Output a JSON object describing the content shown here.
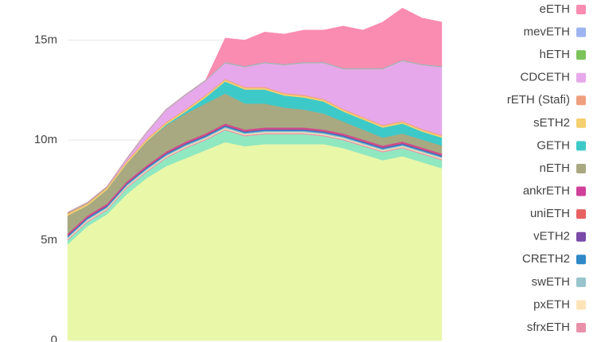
{
  "chart_data": {
    "type": "stacked-area",
    "categories": [
      null,
      null,
      null,
      null,
      null,
      null,
      null,
      null,
      null,
      null,
      null,
      null,
      null,
      null,
      null,
      null,
      null,
      null,
      null,
      null
    ],
    "ylim": [
      0,
      17000000
    ],
    "yticks": [
      0,
      {
        "value": 5000000,
        "label": "5m"
      },
      {
        "value": 10000000,
        "label": "10m"
      },
      {
        "value": 15000000,
        "label": "15m"
      }
    ],
    "grid": true,
    "series": [
      {
        "name": "eETH",
        "color": "#f98cb0",
        "values": [
          0,
          0,
          0,
          0,
          0,
          0,
          0,
          0,
          1200000,
          1300000,
          1500000,
          1500000,
          1600000,
          1600000,
          2100000,
          1900000,
          2300000,
          2600000,
          2300000,
          2200000
        ]
      },
      {
        "name": "mevETH",
        "color": "#9db4f0",
        "values": [
          20000,
          20000,
          20000,
          20000,
          20000,
          20000,
          20000,
          20000,
          20000,
          20000,
          20000,
          20000,
          20000,
          20000,
          20000,
          20000,
          20000,
          20000,
          20000,
          20000
        ]
      },
      {
        "name": "hETH",
        "color": "#7cc35a",
        "values": [
          20000,
          20000,
          20000,
          20000,
          20000,
          20000,
          20000,
          20000,
          20000,
          20000,
          20000,
          20000,
          20000,
          20000,
          20000,
          20000,
          20000,
          20000,
          20000,
          20000
        ]
      },
      {
        "name": "CDCETH",
        "color": "#e6a8ea",
        "values": [
          0,
          0,
          0,
          100000,
          300000,
          600000,
          700000,
          700000,
          800000,
          1000000,
          1200000,
          1400000,
          1600000,
          1800000,
          2000000,
          2400000,
          2800000,
          3000000,
          3200000,
          3400000
        ]
      },
      {
        "name": "rETH (Stafi)",
        "color": "#f0a080",
        "values": [
          50000,
          50000,
          50000,
          50000,
          50000,
          50000,
          50000,
          50000,
          50000,
          50000,
          50000,
          50000,
          50000,
          50000,
          50000,
          50000,
          50000,
          50000,
          50000,
          50000
        ]
      },
      {
        "name": "sETH2",
        "color": "#f5d070",
        "values": [
          80000,
          80000,
          80000,
          80000,
          80000,
          80000,
          80000,
          80000,
          80000,
          80000,
          80000,
          80000,
          80000,
          80000,
          80000,
          80000,
          80000,
          80000,
          80000,
          80000
        ]
      },
      {
        "name": "GETH",
        "color": "#3ec9c9",
        "values": [
          0,
          0,
          0,
          0,
          0,
          50000,
          100000,
          300000,
          600000,
          700000,
          700000,
          600000,
          600000,
          600000,
          500000,
          500000,
          500000,
          500000,
          400000,
          400000
        ]
      },
      {
        "name": "nETH",
        "color": "#a8a980",
        "values": [
          900000,
          500000,
          700000,
          900000,
          1200000,
          1300000,
          1400000,
          1500000,
          1500000,
          1300000,
          1200000,
          1000000,
          900000,
          800000,
          600000,
          500000,
          400000,
          400000,
          400000,
          400000
        ]
      },
      {
        "name": "ankrETH",
        "color": "#d0409a",
        "values": [
          50000,
          50000,
          50000,
          50000,
          50000,
          50000,
          50000,
          50000,
          50000,
          50000,
          50000,
          50000,
          50000,
          50000,
          50000,
          50000,
          50000,
          50000,
          50000,
          50000
        ]
      },
      {
        "name": "uniETH",
        "color": "#e86060",
        "values": [
          30000,
          30000,
          30000,
          30000,
          30000,
          30000,
          30000,
          30000,
          30000,
          30000,
          30000,
          30000,
          30000,
          30000,
          30000,
          30000,
          30000,
          30000,
          30000,
          30000
        ]
      },
      {
        "name": "vETH2",
        "color": "#7a4aa8",
        "values": [
          40000,
          40000,
          40000,
          40000,
          40000,
          40000,
          40000,
          40000,
          40000,
          40000,
          40000,
          40000,
          40000,
          40000,
          40000,
          40000,
          40000,
          40000,
          40000,
          40000
        ]
      },
      {
        "name": "CRETH2",
        "color": "#2f88c8",
        "values": [
          50000,
          50000,
          50000,
          50000,
          50000,
          50000,
          50000,
          50000,
          50000,
          50000,
          50000,
          50000,
          50000,
          50000,
          50000,
          50000,
          50000,
          50000,
          50000,
          50000
        ]
      },
      {
        "name": "swETH",
        "color": "#98c4cc",
        "values": [
          60000,
          60000,
          60000,
          60000,
          60000,
          60000,
          60000,
          60000,
          60000,
          60000,
          60000,
          60000,
          60000,
          60000,
          60000,
          60000,
          60000,
          60000,
          60000,
          60000
        ]
      },
      {
        "name": "pxETH",
        "color": "#fde4b8",
        "values": [
          50000,
          50000,
          50000,
          50000,
          50000,
          50000,
          50000,
          50000,
          50000,
          50000,
          50000,
          50000,
          50000,
          50000,
          50000,
          50000,
          50000,
          50000,
          50000,
          50000
        ]
      },
      {
        "name": "sfrxETH",
        "color": "#e890a8",
        "values": [
          50000,
          50000,
          50000,
          50000,
          50000,
          50000,
          50000,
          50000,
          50000,
          50000,
          50000,
          50000,
          50000,
          50000,
          50000,
          50000,
          50000,
          50000,
          50000,
          50000
        ]
      },
      {
        "color": "#90e8c0",
        "values": [
          200000,
          200000,
          200000,
          300000,
          300000,
          400000,
          500000,
          500000,
          600000,
          500000,
          500000,
          500000,
          500000,
          400000,
          400000,
          400000,
          400000,
          400000,
          400000,
          400000
        ]
      },
      {
        "color": "#e9f7a9",
        "values": [
          4800000,
          5700000,
          6300000,
          7300000,
          8100000,
          8700000,
          9100000,
          9500000,
          9900000,
          9700000,
          9800000,
          9800000,
          9800000,
          9800000,
          9600000,
          9300000,
          9000000,
          9200000,
          8900000,
          8600000
        ]
      }
    ]
  }
}
